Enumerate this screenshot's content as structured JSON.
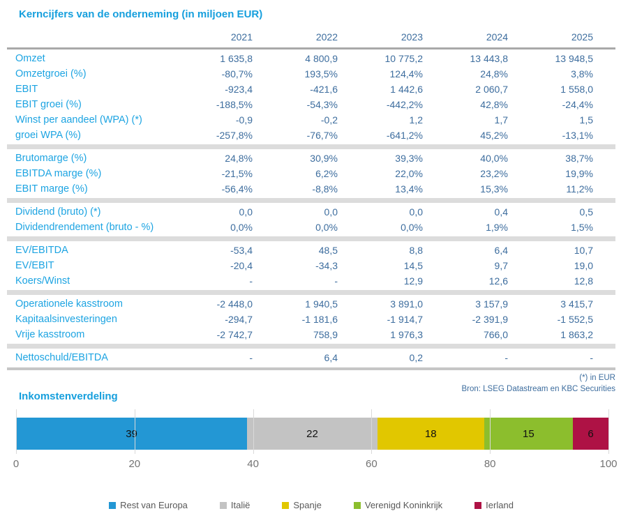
{
  "accent_color": "#169fdd",
  "value_color": "#3d6d9e",
  "chart_data": [
    {
      "type": "table",
      "title": "Kerncijfers van de onderneming (in miljoen EUR)",
      "columns": [
        "2021",
        "2022",
        "2023",
        "2024",
        "2025"
      ],
      "sections": [
        {
          "rows": [
            {
              "label": "Omzet",
              "values": [
                "1 635,8",
                "4 800,9",
                "10 775,2",
                "13 443,8",
                "13 948,5"
              ]
            },
            {
              "label": "Omzetgroei (%)",
              "values": [
                "-80,7%",
                "193,5%",
                "124,4%",
                "24,8%",
                "3,8%"
              ]
            },
            {
              "label": "EBIT",
              "values": [
                "-923,4",
                "-421,6",
                "1 442,6",
                "2 060,7",
                "1 558,0"
              ]
            },
            {
              "label": "EBIT groei (%)",
              "values": [
                "-188,5%",
                "-54,3%",
                "-442,2%",
                "42,8%",
                "-24,4%"
              ]
            },
            {
              "label": "Winst per aandeel (WPA) (*)",
              "values": [
                "-0,9",
                "-0,2",
                "1,2",
                "1,7",
                "1,5"
              ]
            },
            {
              "label": "groei WPA (%)",
              "values": [
                "-257,8%",
                "-76,7%",
                "-641,2%",
                "45,2%",
                "-13,1%"
              ]
            }
          ]
        },
        {
          "rows": [
            {
              "label": "Brutomarge (%)",
              "values": [
                "24,8%",
                "30,9%",
                "39,3%",
                "40,0%",
                "38,7%"
              ]
            },
            {
              "label": "EBITDA marge (%)",
              "values": [
                "-21,5%",
                "6,2%",
                "22,0%",
                "23,2%",
                "19,9%"
              ]
            },
            {
              "label": "EBIT marge (%)",
              "values": [
                "-56,4%",
                "-8,8%",
                "13,4%",
                "15,3%",
                "11,2%"
              ]
            }
          ]
        },
        {
          "rows": [
            {
              "label": "Dividend (bruto) (*)",
              "values": [
                "0,0",
                "0,0",
                "0,0",
                "0,4",
                "0,5"
              ]
            },
            {
              "label": "Dividendrendement (bruto - %)",
              "values": [
                "0,0%",
                "0,0%",
                "0,0%",
                "1,9%",
                "1,5%"
              ]
            }
          ]
        },
        {
          "rows": [
            {
              "label": "EV/EBITDA",
              "values": [
                "-53,4",
                "48,5",
                "8,8",
                "6,4",
                "10,7"
              ]
            },
            {
              "label": "EV/EBIT",
              "values": [
                "-20,4",
                "-34,3",
                "14,5",
                "9,7",
                "19,0"
              ]
            },
            {
              "label": "Koers/Winst",
              "values": [
                "-",
                "-",
                "12,9",
                "12,6",
                "12,8"
              ]
            }
          ]
        },
        {
          "rows": [
            {
              "label": "Operationele kasstroom",
              "values": [
                "-2 448,0",
                "1 940,5",
                "3 891,0",
                "3 157,9",
                "3 415,7"
              ]
            },
            {
              "label": "Kapitaalsinvesteringen",
              "values": [
                "-294,7",
                "-1 181,6",
                "-1 914,7",
                "-2 391,9",
                "-1 552,5"
              ]
            },
            {
              "label": "Vrije kasstroom",
              "values": [
                "-2 742,7",
                "758,9",
                "1 976,3",
                "766,0",
                "1 863,2"
              ]
            }
          ]
        },
        {
          "rows": [
            {
              "label": "Nettoschuld/EBITDA",
              "values": [
                "-",
                "6,4",
                "0,2",
                "-",
                "-"
              ]
            }
          ]
        }
      ],
      "footnotes": [
        "(*) in EUR",
        "Bron: LSEG Datastream en KBC Securities"
      ]
    },
    {
      "type": "bar",
      "stacked": true,
      "orientation": "horizontal",
      "title": "Inkomstenverdeling",
      "series": [
        {
          "name": "Rest van Europa",
          "values": [
            39
          ],
          "color": "#2397d4"
        },
        {
          "name": "Italië",
          "values": [
            22
          ],
          "color": "#c3c3c3"
        },
        {
          "name": "Spanje",
          "values": [
            18
          ],
          "color": "#e1c700"
        },
        {
          "name": "Verenigd Koninkrijk",
          "values": [
            15
          ],
          "color": "#8cbe2d"
        },
        {
          "name": "Ierland",
          "values": [
            6
          ],
          "color": "#ae1245"
        }
      ],
      "xlim": [
        0,
        100
      ],
      "xticks": [
        0,
        20,
        40,
        60,
        80,
        100
      ],
      "grid": true,
      "legend_position": "bottom"
    }
  ]
}
